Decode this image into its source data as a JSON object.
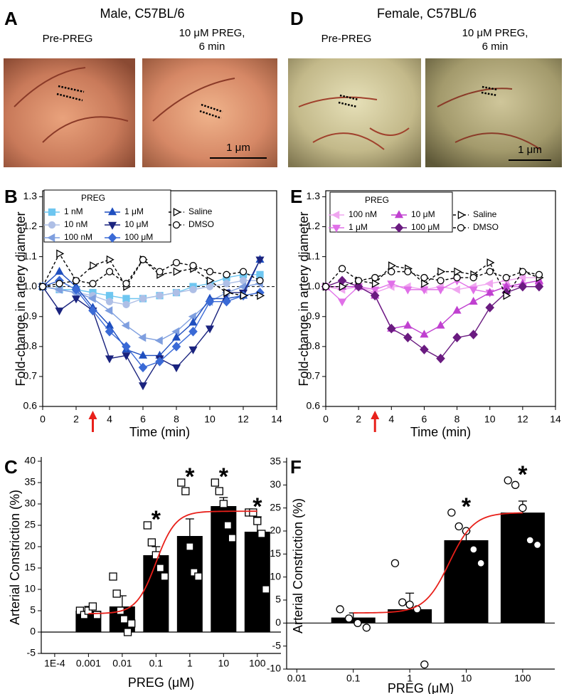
{
  "photo_panels": [
    {
      "panel": "A",
      "title": "Male, C57BL/6",
      "left_caption": "Pre-PREG",
      "right_caption": [
        "10 μM PREG,",
        "6 min"
      ],
      "scale_bar": "1 μm"
    },
    {
      "panel": "D",
      "title": "Female, C57BL/6",
      "left_caption": "Pre-PREG",
      "right_caption": [
        "10 μM PREG,",
        "6 min"
      ],
      "scale_bar": "1 μm"
    }
  ],
  "chart_data": [
    {
      "type": "line",
      "panel": "B",
      "x_label": "Time (min)",
      "y_label": "Fold-change in artery diameter",
      "legend_title": "PREG",
      "x": [
        0,
        1,
        2,
        3,
        4,
        5,
        6,
        7,
        8,
        9,
        10,
        11,
        12,
        13
      ],
      "xlim": [
        0,
        14
      ],
      "xticks": [
        0,
        2,
        4,
        6,
        8,
        10,
        12,
        14
      ],
      "ylim": [
        0.6,
        1.32
      ],
      "yticks": [
        0.6,
        0.7,
        0.8,
        0.9,
        {
          "value": 1,
          "label": "1.0"
        },
        1.1,
        1.2,
        1.3
      ],
      "reference_line": 1,
      "arrow_x": 3,
      "series": [
        {
          "name": "1 nM",
          "color": "#6ec6f0",
          "marker": "square",
          "filled": true,
          "dashed": false,
          "values": [
            1.0,
            0.99,
            0.99,
            0.98,
            0.97,
            0.96,
            0.96,
            0.97,
            0.98,
            1.0,
            1.01,
            1.03,
            1.04,
            1.04
          ]
        },
        {
          "name": "10 nM",
          "color": "#aebfe6",
          "marker": "circle",
          "filled": true,
          "dashed": false,
          "values": [
            1.0,
            0.99,
            0.98,
            0.97,
            0.95,
            0.94,
            0.96,
            0.97,
            0.98,
            0.99,
            1.0,
            1.01,
            1.02,
            1.02
          ]
        },
        {
          "name": "100 nM",
          "color": "#7f9fdf",
          "marker": "triangle-left",
          "filled": true,
          "dashed": false,
          "values": [
            1.0,
            0.99,
            0.98,
            0.96,
            0.92,
            0.87,
            0.83,
            0.82,
            0.85,
            0.9,
            0.95,
            0.98,
            1.0,
            1.01
          ]
        },
        {
          "name": "1 μM",
          "color": "#1f4fbf",
          "marker": "triangle-up",
          "filled": true,
          "dashed": false,
          "values": [
            1.0,
            1.05,
            1.0,
            0.93,
            0.87,
            0.79,
            0.77,
            0.77,
            0.83,
            0.88,
            0.96,
            0.96,
            0.97,
            1.09
          ]
        },
        {
          "name": "10 μM",
          "color": "#1a237e",
          "marker": "triangle-down",
          "filled": true,
          "dashed": false,
          "values": [
            1.0,
            0.92,
            0.96,
            0.92,
            0.76,
            0.77,
            0.67,
            0.76,
            0.73,
            0.79,
            0.86,
            0.98,
            0.98,
            1.09
          ]
        },
        {
          "name": "100 μM",
          "color": "#3a6ad6",
          "marker": "diamond",
          "filled": true,
          "dashed": false,
          "values": [
            1.0,
            1.02,
            0.99,
            0.92,
            0.85,
            0.8,
            0.73,
            0.75,
            0.8,
            0.85,
            0.95,
            0.95,
            0.97,
            0.98
          ]
        },
        {
          "name": "Saline",
          "color": "#000000",
          "marker": "triangle-right",
          "filled": false,
          "dashed": true,
          "values": [
            1.0,
            1.11,
            1.02,
            1.07,
            1.09,
            1.0,
            1.09,
            1.04,
            1.05,
            1.06,
            1.02,
            0.98,
            0.97,
            0.97
          ]
        },
        {
          "name": "DMSO",
          "color": "#000000",
          "marker": "circle",
          "filled": false,
          "dashed": true,
          "values": [
            1.0,
            1.01,
            1.02,
            1.01,
            1.05,
            1.01,
            1.09,
            1.05,
            1.08,
            1.07,
            1.05,
            1.04,
            1.05,
            1.02
          ]
        }
      ]
    },
    {
      "type": "line",
      "panel": "E",
      "x_label": "Time (min)",
      "y_label": "Fold-change in artery diameter",
      "legend_title": "PREG",
      "x": [
        0,
        1,
        2,
        3,
        4,
        5,
        6,
        7,
        8,
        9,
        10,
        11,
        12,
        13
      ],
      "xlim": [
        0,
        14
      ],
      "xticks": [
        0,
        2,
        4,
        6,
        8,
        10,
        12,
        14
      ],
      "ylim": [
        0.6,
        1.32
      ],
      "yticks": [
        0.6,
        0.7,
        0.8,
        0.9,
        {
          "value": 1,
          "label": "1.0"
        },
        1.1,
        1.2,
        1.3
      ],
      "arrow_x": 3,
      "series": [
        {
          "name": "100 nM",
          "color": "#f0a6f0",
          "marker": "triangle-left",
          "filled": true,
          "dashed": false,
          "values": [
            1.0,
            0.99,
            1.0,
            0.98,
            1.0,
            1.0,
            0.99,
            1.0,
            0.99,
            1.0,
            1.01,
            1.02,
            1.03,
            1.03
          ]
        },
        {
          "name": "1 μM",
          "color": "#e070e8",
          "marker": "triangle-down",
          "filled": true,
          "dashed": false,
          "values": [
            1.0,
            0.95,
            1.0,
            0.99,
            1.01,
            0.99,
            0.99,
            0.99,
            1.02,
            0.99,
            0.98,
            1.0,
            1.0,
            1.0
          ]
        },
        {
          "name": "10 μM",
          "color": "#c040d0",
          "marker": "triangle-up",
          "filled": true,
          "dashed": false,
          "values": [
            1.0,
            1.0,
            1.0,
            0.97,
            0.86,
            0.87,
            0.84,
            0.87,
            0.92,
            0.95,
            0.98,
            1.0,
            1.01,
            1.02
          ]
        },
        {
          "name": "100 μM",
          "color": "#6a1b80",
          "marker": "diamond",
          "filled": true,
          "dashed": false,
          "values": [
            1.0,
            1.02,
            1.0,
            0.97,
            0.86,
            0.83,
            0.79,
            0.76,
            0.83,
            0.84,
            0.93,
            0.98,
            1.0,
            1.0
          ]
        },
        {
          "name": "Saline",
          "color": "#000000",
          "marker": "triangle-right",
          "filled": false,
          "dashed": true,
          "values": [
            1.0,
            1.0,
            1.02,
            1.01,
            1.07,
            1.06,
            1.01,
            1.05,
            1.05,
            1.04,
            1.08,
            0.97,
            1.05,
            1.03
          ]
        },
        {
          "name": "DMSO",
          "color": "#000000",
          "marker": "circle",
          "filled": false,
          "dashed": true,
          "values": [
            1.0,
            1.06,
            1.02,
            1.03,
            1.05,
            1.05,
            1.03,
            1.02,
            1.03,
            1.03,
            1.05,
            1.03,
            1.05,
            1.04
          ]
        }
      ]
    },
    {
      "type": "bar",
      "panel": "C",
      "x_label": "PREG (μM)",
      "y_label": "Arterial Constriction (%)",
      "xscale": "log",
      "xlim": [
        4e-05,
        500
      ],
      "xticks": [
        {
          "value": 0.0001,
          "label": "1E-4"
        },
        0.001,
        0.01,
        0.1,
        1,
        10,
        100
      ],
      "ylim": [
        -5,
        40
      ],
      "yticks": [
        -5,
        0,
        5,
        10,
        15,
        20,
        25,
        30,
        35,
        40
      ],
      "x": [
        0.001,
        0.01,
        0.1,
        1,
        10,
        100
      ],
      "values": [
        5,
        6,
        18,
        22.5,
        29.5,
        23.5
      ],
      "errors": [
        1,
        2.5,
        2,
        4,
        2,
        3.5
      ],
      "color": "#000000",
      "points": [
        [
          5,
          4,
          5,
          6,
          4
        ],
        [
          13,
          9,
          5,
          3,
          0,
          2
        ],
        [
          25,
          21,
          18,
          15,
          13
        ],
        [
          35,
          33,
          20,
          14,
          13
        ],
        [
          35,
          33,
          30,
          25,
          22
        ],
        [
          28,
          28,
          26,
          23,
          10
        ]
      ],
      "point_marker": "square",
      "fit": {
        "bottom": 4.3,
        "top": 28.3,
        "ec50": 0.1,
        "hill": 1.5,
        "range": [
          0.001,
          100
        ],
        "color": "#e8201a"
      },
      "significant": [
        0.1,
        1,
        10,
        100
      ],
      "significance_mark": "*"
    },
    {
      "type": "bar",
      "panel": "F",
      "x_label": "PREG (μM)",
      "y_label": "Arterial Constriction (%)",
      "xscale": "log",
      "xlim": [
        0.0066,
        370
      ],
      "xticks": [
        0.01,
        0.1,
        1,
        10,
        100
      ],
      "ylim": [
        -10,
        35
      ],
      "yticks": [
        -10,
        -5,
        0,
        5,
        10,
        15,
        20,
        25,
        30,
        35
      ],
      "x": [
        0.1,
        1,
        10,
        100
      ],
      "values": [
        1.2,
        3,
        18,
        24
      ],
      "errors": [
        1,
        3.5,
        2,
        2.5
      ],
      "color": "#000000",
      "points": [
        [
          3,
          1,
          0,
          -1
        ],
        [
          13,
          4.5,
          4,
          3,
          -9
        ],
        [
          24,
          21,
          20,
          16,
          13
        ],
        [
          31,
          30,
          25,
          18,
          17
        ]
      ],
      "point_marker": "circle",
      "fit": {
        "bottom": 2.2,
        "top": 24,
        "ec50": 5,
        "hill": 2,
        "range": [
          0.1,
          100
        ],
        "color": "#e8201a"
      },
      "significant": [
        10,
        100
      ],
      "significance_mark": "*"
    }
  ]
}
